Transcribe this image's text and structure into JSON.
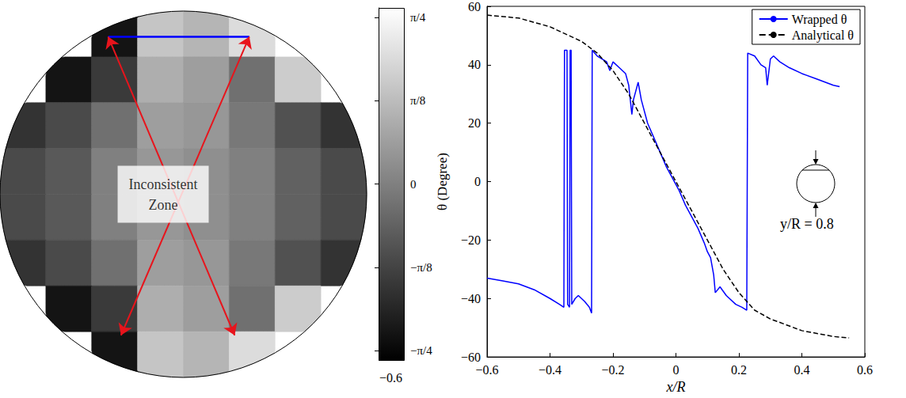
{
  "chart_data": [
    {
      "type": "heatmap",
      "xlim": [
        -1,
        1
      ],
      "ylim": [
        -1,
        1
      ],
      "tick_labels": false,
      "cells": {
        "x": [
          -0.875,
          -0.625,
          -0.375,
          -0.125,
          0.125,
          0.375,
          0.625,
          0.875
        ],
        "y": [
          0.875,
          0.625,
          0.375,
          0.125,
          -0.125,
          -0.375,
          -0.625,
          -0.875
        ],
        "values": [
          [
            null,
            null,
            -0.7,
            0.45,
            0.35,
            0.6,
            null,
            null
          ],
          [
            null,
            -0.7,
            -0.45,
            0.3,
            0.2,
            -0.1,
            0.5,
            null
          ],
          [
            -0.5,
            -0.35,
            -0.1,
            0.2,
            0.15,
            -0.05,
            -0.3,
            -0.5
          ],
          [
            -0.35,
            -0.25,
            0.0,
            0.15,
            0.1,
            0.0,
            -0.2,
            -0.35
          ],
          [
            -0.35,
            -0.25,
            0.0,
            0.15,
            0.1,
            0.0,
            -0.2,
            -0.35
          ],
          [
            -0.5,
            -0.35,
            -0.1,
            0.2,
            0.15,
            -0.05,
            -0.3,
            -0.5
          ],
          [
            null,
            -0.7,
            -0.45,
            0.3,
            0.2,
            -0.1,
            0.5,
            null
          ],
          [
            null,
            null,
            -0.7,
            0.45,
            0.35,
            0.6,
            null,
            null
          ]
        ]
      },
      "colorbar": {
        "lim": [
          -0.83,
          0.83
        ],
        "ticks": [
          {
            "value": -0.7854,
            "label": "−π/4"
          },
          {
            "value": -0.3927,
            "label": "−π/8"
          },
          0,
          {
            "value": 0.3927,
            "label": "π/8"
          },
          {
            "value": 0.7854,
            "label": "π/4"
          }
        ],
        "note": "−0.6"
      },
      "profile": {
        "y": 0.86,
        "x": [
          -0.41,
          0.36
        ]
      },
      "annotation": {
        "text": "Inconsistent Zone",
        "at": [
          -0.11,
          0.0
        ],
        "arrows": [
          [
            [
              -0.41,
              0.86
            ],
            [
              0.28,
              -0.77
            ]
          ],
          [
            [
              0.36,
              0.86
            ],
            [
              -0.34,
              -0.77
            ]
          ]
        ]
      }
    },
    {
      "type": "line",
      "xlabel": "x/R",
      "ylabel": "θ (Degree)",
      "xlim": [
        -0.6,
        0.6
      ],
      "xticks": [
        {
          "value": -0.6,
          "label": "−0.6"
        },
        {
          "value": -0.4,
          "label": "−0.4"
        },
        {
          "value": -0.2,
          "label": "−0.2"
        },
        0,
        0.2,
        0.4,
        0.6
      ],
      "ylim": [
        -60,
        60
      ],
      "yticks": [
        {
          "value": -60,
          "label": "−60"
        },
        {
          "value": -40,
          "label": "−40"
        },
        {
          "value": -20,
          "label": "−20"
        },
        0,
        20,
        40,
        60
      ],
      "grid": false,
      "legend": "upper right",
      "inset_label": "y/R = 0.8",
      "series": [
        {
          "name": "Wrapped θ",
          "color": "#0000ff",
          "line_style": "solid",
          "x": [
            -0.6,
            -0.55,
            -0.5,
            -0.45,
            -0.4,
            -0.37,
            -0.356,
            -0.354,
            -0.346,
            -0.344,
            -0.338,
            -0.336,
            -0.333,
            -0.331,
            -0.32,
            -0.31,
            -0.29,
            -0.275,
            -0.268,
            -0.266,
            -0.25,
            -0.22,
            -0.21,
            -0.2,
            -0.18,
            -0.16,
            -0.15,
            -0.14,
            -0.135,
            -0.12,
            -0.11,
            -0.09,
            -0.07,
            -0.05,
            -0.03,
            -0.01,
            0.01,
            0.03,
            0.05,
            0.07,
            0.09,
            0.1,
            0.11,
            0.12,
            0.125,
            0.14,
            0.16,
            0.17,
            0.19,
            0.21,
            0.225,
            0.228,
            0.25,
            0.27,
            0.285,
            0.29,
            0.3,
            0.31,
            0.33,
            0.36,
            0.4,
            0.45,
            0.5,
            0.52
          ],
          "values": [
            -33,
            -34,
            -35,
            -37,
            -40,
            -42,
            -43,
            45,
            45,
            -42,
            -43,
            45,
            45,
            -42,
            -40,
            -39,
            -41,
            -43,
            -45,
            45,
            43,
            41,
            38,
            41,
            39,
            37,
            33,
            23,
            28,
            34,
            28,
            20,
            15,
            10,
            5,
            1,
            -3,
            -8,
            -12,
            -16,
            -21,
            -24,
            -26,
            -32,
            -38,
            -36,
            -39,
            -40,
            -42,
            -43,
            -44,
            44,
            43,
            40,
            39,
            33,
            42,
            43,
            41,
            39,
            37,
            35,
            33,
            32.5
          ]
        },
        {
          "name": "Analytical θ",
          "color": "#000000",
          "line_style": "dashed",
          "x": [
            -0.6,
            -0.5,
            -0.4,
            -0.3,
            -0.25,
            -0.2,
            -0.15,
            -0.1,
            -0.05,
            0,
            0.05,
            0.1,
            0.15,
            0.2,
            0.25,
            0.3,
            0.4,
            0.5,
            0.55
          ],
          "values": [
            57,
            56,
            53,
            48,
            44,
            38,
            30,
            20,
            10,
            0,
            -10,
            -20,
            -30,
            -38,
            -44,
            -47,
            -51,
            -53,
            -53.5
          ]
        }
      ]
    }
  ]
}
